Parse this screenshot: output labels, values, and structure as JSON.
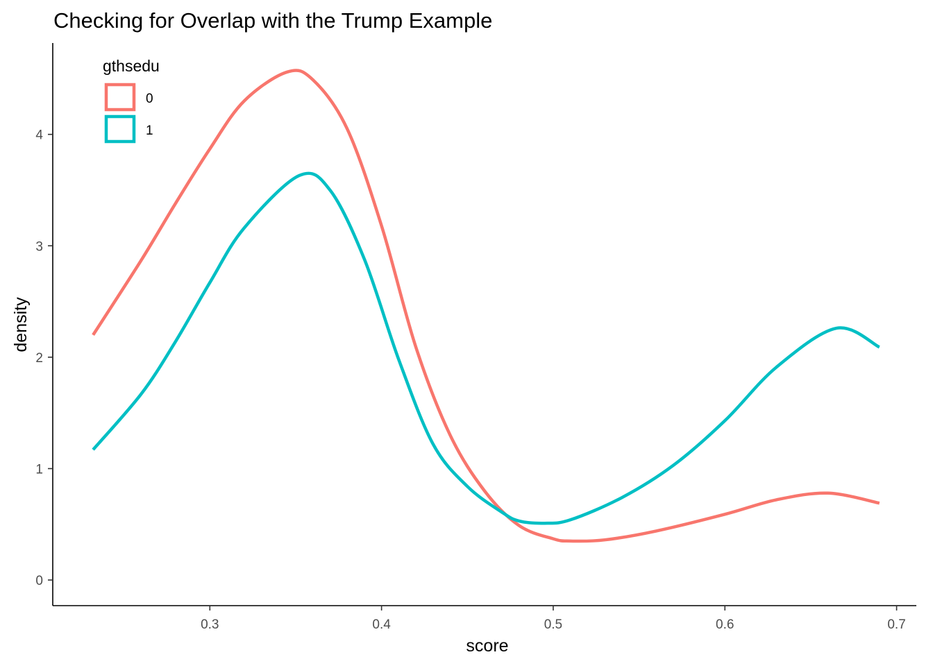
{
  "chart_data": {
    "type": "line",
    "title": "Checking for Overlap with the Trump Example",
    "xlabel": "score",
    "ylabel": "density",
    "xlim": [
      0.2085,
      0.7115
    ],
    "ylim": [
      -0.23,
      4.82
    ],
    "x_ticks": [
      0.3,
      0.4,
      0.5,
      0.6,
      0.7
    ],
    "x_tick_labels": [
      "0.3",
      "0.4",
      "0.5",
      "0.6",
      "0.7"
    ],
    "y_ticks": [
      0,
      1,
      2,
      3,
      4
    ],
    "y_tick_labels": [
      "0",
      "1",
      "2",
      "3",
      "4"
    ],
    "grid": false,
    "legend": {
      "title": "gthsedu",
      "position": "top-left"
    },
    "series": [
      {
        "name": "0",
        "color": "#F8766D",
        "x": [
          0.232,
          0.26,
          0.28,
          0.3,
          0.32,
          0.345,
          0.36,
          0.38,
          0.4,
          0.42,
          0.44,
          0.46,
          0.48,
          0.5,
          0.51,
          0.53,
          0.56,
          0.6,
          0.63,
          0.66,
          0.69
        ],
        "y": [
          2.2,
          2.87,
          3.38,
          3.87,
          4.3,
          4.56,
          4.49,
          4.05,
          3.18,
          2.09,
          1.3,
          0.8,
          0.49,
          0.37,
          0.35,
          0.36,
          0.44,
          0.59,
          0.72,
          0.78,
          0.69
        ]
      },
      {
        "name": "1",
        "color": "#00BFC4",
        "x": [
          0.232,
          0.26,
          0.28,
          0.3,
          0.32,
          0.352,
          0.37,
          0.39,
          0.41,
          0.43,
          0.45,
          0.47,
          0.48,
          0.495,
          0.51,
          0.54,
          0.57,
          0.6,
          0.63,
          0.665,
          0.69
        ],
        "y": [
          1.17,
          1.67,
          2.14,
          2.67,
          3.16,
          3.63,
          3.5,
          2.88,
          1.98,
          1.22,
          0.84,
          0.61,
          0.53,
          0.51,
          0.54,
          0.74,
          1.03,
          1.43,
          1.91,
          2.26,
          2.09
        ]
      }
    ]
  }
}
